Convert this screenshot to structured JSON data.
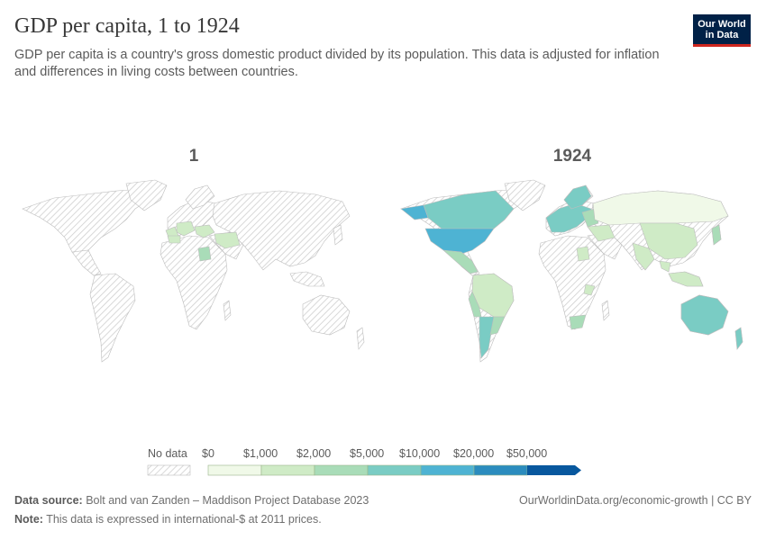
{
  "header": {
    "title": "GDP per capita, 1 to 1924",
    "subtitle": "GDP per capita is a country's gross domestic product divided by its population. This data is adjusted for inflation and differences in living costs between countries.",
    "logo_line1": "Our World",
    "logo_line2": "in Data"
  },
  "panels": [
    {
      "label": "1"
    },
    {
      "label": "1924"
    }
  ],
  "legend": {
    "no_data_label": "No data",
    "bins": [
      {
        "label": "$0",
        "color": "#f0f9e8"
      },
      {
        "label": "$1,000",
        "color": "#cfebc6"
      },
      {
        "label": "$2,000",
        "color": "#a9dcb8"
      },
      {
        "label": "$5,000",
        "color": "#7accc4"
      },
      {
        "label": "$10,000",
        "color": "#4eb3d3"
      },
      {
        "label": "$20,000",
        "color": "#2b8cbe"
      },
      {
        "label": "$50,000",
        "color": "#08589e"
      }
    ]
  },
  "map_colors": {
    "no_data_hatch": "#cfcfcf",
    "country_stroke": "#bdbdbd"
  },
  "footer": {
    "source_label": "Data source:",
    "source_text": "Bolt and van Zanden – Maddison Project Database 2023",
    "note_label": "Note:",
    "note_text": "This data is expressed in international-$ at 2011 prices.",
    "link_text": "OurWorldinData.org/economic-growth | CC BY"
  }
}
